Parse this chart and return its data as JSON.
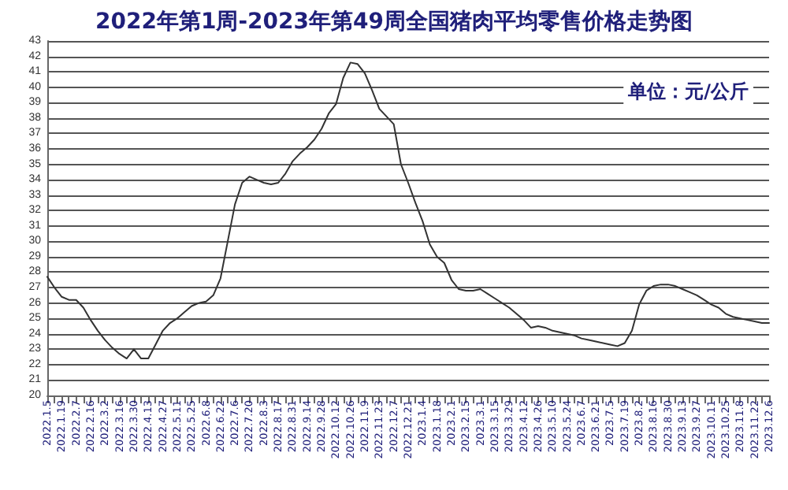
{
  "chart_data": {
    "type": "line",
    "title": "2022年第1周-2023年第49周全国猪肉平均零售价格走势图",
    "annotations": [
      "单位：元/公斤"
    ],
    "categories": [
      "2022.1.5",
      null,
      "2022.1.19",
      null,
      "2022.2.7",
      null,
      "2022.2.16",
      null,
      "2022.3.2",
      null,
      "2022.3.16",
      null,
      "2022.3.30",
      null,
      "2022.4.13",
      null,
      "2022.4.27",
      null,
      "2022.5.11",
      null,
      "2022.5.25",
      null,
      "2022.6.8",
      null,
      "2022.6.22",
      null,
      "2022.7.6",
      null,
      "2022.7.20",
      null,
      "2022.8.3",
      null,
      "2022.8.17",
      null,
      "2022.8.31",
      null,
      "2022.9.14",
      null,
      "2022.9.28",
      null,
      "2022.10.12",
      null,
      "2022.10.26",
      null,
      "2022.11.9",
      null,
      "2022.11.23",
      null,
      "2022.12.7",
      null,
      "2022.12.21",
      null,
      "2023.1.4",
      null,
      "2023.1.18",
      null,
      "2023.2.1",
      null,
      "2023.2.15",
      null,
      "2023.3.1",
      null,
      "2023.3.15",
      null,
      "2023.3.29",
      null,
      "2023.4.12",
      null,
      "2023.4.26",
      null,
      "2023.5.10",
      null,
      "2023.5.24",
      null,
      "2023.6.7",
      null,
      "2023.6.21",
      null,
      "2023.7.5",
      null,
      "2023.7.19",
      null,
      "2023.8.2",
      null,
      "2023.8.16",
      null,
      "2023.8.30",
      null,
      "2023.9.13",
      null,
      "2023.9.27",
      null,
      "2023.10.11",
      null,
      "2023.10.25",
      null,
      "2023.11.8",
      null,
      "2023.11.22",
      null,
      "2023.12.6"
    ],
    "series": [
      {
        "color": "#333333",
        "values": [
          27.7,
          27.0,
          26.4,
          26.2,
          26.2,
          25.7,
          24.9,
          24.2,
          23.6,
          23.1,
          22.7,
          22.4,
          23.0,
          22.4,
          22.4,
          23.3,
          24.2,
          24.7,
          25.0,
          25.4,
          25.8,
          26.0,
          26.1,
          26.5,
          27.6,
          30.0,
          32.4,
          33.8,
          34.2,
          34.0,
          33.8,
          33.7,
          33.8,
          34.4,
          35.2,
          35.7,
          36.1,
          36.6,
          37.3,
          38.3,
          38.9,
          40.6,
          41.6,
          41.5,
          40.9,
          39.8,
          38.6,
          38.1,
          37.6,
          35.0,
          33.8,
          32.5,
          31.3,
          29.8,
          29.0,
          28.6,
          27.5,
          26.9,
          26.8,
          26.8,
          26.9,
          26.6,
          26.3,
          26.0,
          25.7,
          25.3,
          24.9,
          24.4,
          24.5,
          24.4,
          24.2,
          24.1,
          24.0,
          23.9,
          23.7,
          23.6,
          23.5,
          23.4,
          23.3,
          23.2,
          23.4,
          24.2,
          25.9,
          26.8,
          27.1,
          27.2,
          27.2,
          27.1,
          26.9,
          26.7,
          26.5,
          26.2,
          25.9,
          25.7,
          25.3,
          25.1,
          25.0,
          24.9,
          24.8,
          24.7,
          24.7
        ]
      }
    ],
    "ylim": [
      20,
      43
    ],
    "yticks": [
      20,
      21,
      22,
      23,
      24,
      25,
      26,
      27,
      28,
      29,
      30,
      31,
      32,
      33,
      34,
      35,
      36,
      37,
      38,
      39,
      40,
      41,
      42,
      43
    ],
    "grid": "y",
    "marker": "none",
    "line_style": "solid"
  }
}
